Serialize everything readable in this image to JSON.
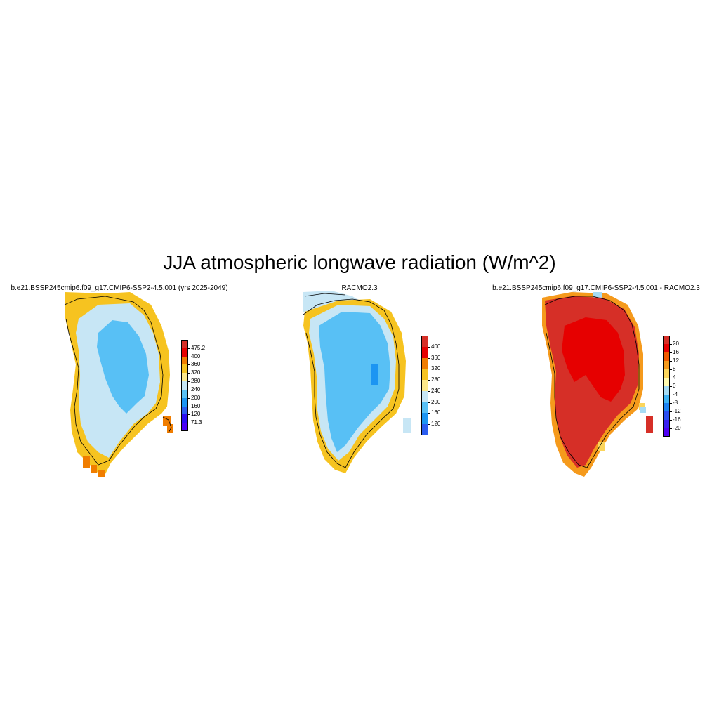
{
  "title": "JJA atmospheric longwave radiation (W/m^2)",
  "panels": [
    {
      "name": "model",
      "title": "b.e21.BSSP245cmip6.f09_g17.CMIP6-SSP2-4.5.001 (yrs 2025-2049)",
      "colorbar": {
        "labels": [
          "475.2",
          "400",
          "360",
          "320",
          "280",
          "240",
          "200",
          "160",
          "120",
          "71.3"
        ],
        "colors": [
          "#d62f27",
          "#e60000",
          "#f07d00",
          "#f6c320",
          "#fde88a",
          "#c7e6f5",
          "#58c0f5",
          "#1c95f2",
          "#2b5df0",
          "#2a0ef2",
          "#4b00f5"
        ]
      }
    },
    {
      "name": "racmo",
      "title": "RACMO2.3",
      "colorbar": {
        "labels": [
          "400",
          "360",
          "320",
          "280",
          "240",
          "200",
          "160",
          "120"
        ],
        "colors": [
          "#d62f27",
          "#e60000",
          "#f07d00",
          "#f6c320",
          "#fde88a",
          "#c7e6f5",
          "#58c0f5",
          "#1c95f2",
          "#2b5df0"
        ]
      }
    },
    {
      "name": "difference",
      "title": "b.e21.BSSP245cmip6.f09_g17.CMIP6-SSP2-4.5.001 - RACMO2.3",
      "colorbar": {
        "labels": [
          "20",
          "16",
          "12",
          "8",
          "4",
          "0",
          "-4",
          "-8",
          "-12",
          "-16",
          "-20"
        ],
        "colors": [
          "#d62f27",
          "#e60000",
          "#f05a00",
          "#f59a1c",
          "#fbd55c",
          "#fffab0",
          "#a6dcf5",
          "#3fb4f5",
          "#1c82f2",
          "#2b4ef0",
          "#3a20f0",
          "#5000f5"
        ]
      }
    }
  ],
  "map_colors": {
    "land_low": "#f6c320",
    "ice_light": "#c7e6f5",
    "ice_core": "#58c0f5",
    "ice_deep": "#1c95f2",
    "warm_orange": "#f07d00",
    "diff_main": "#d62f27",
    "diff_core": "#e60000",
    "coast": "#000000"
  }
}
